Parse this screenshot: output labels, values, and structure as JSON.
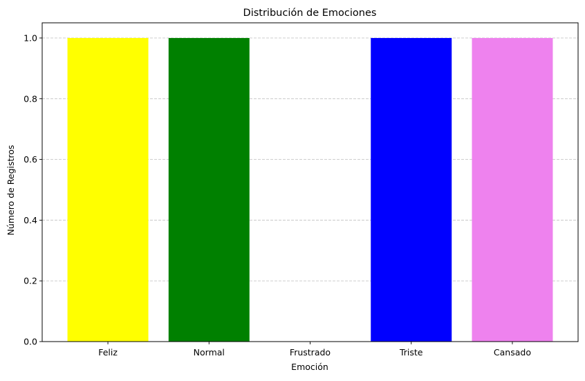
{
  "chart_data": {
    "type": "bar",
    "title": "Distribución de Emociones",
    "xlabel": "Emoción",
    "ylabel": "Número de Registros",
    "categories": [
      "Feliz",
      "Normal",
      "Frustrado",
      "Triste",
      "Cansado"
    ],
    "values": [
      1,
      1,
      0,
      1,
      1
    ],
    "colors": [
      "#ffff00",
      "#008000",
      "#ff0000",
      "#0000ff",
      "#ee82ee"
    ],
    "ylim": [
      0,
      1.05
    ],
    "yticks": [
      "0.0",
      "0.2",
      "0.4",
      "0.6",
      "0.8",
      "1.0"
    ],
    "grid": "y-dashed",
    "grid_color": "#c8c8c8",
    "axis_color": "#000000"
  }
}
